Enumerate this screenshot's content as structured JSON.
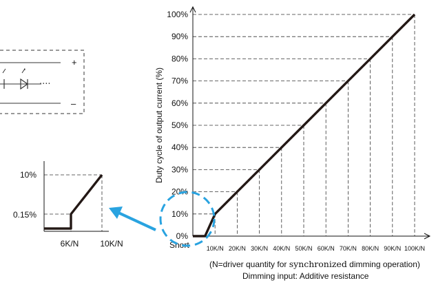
{
  "chart_data": [
    {
      "type": "line",
      "title": "",
      "ylabel": "Duty cycle of output current (%)",
      "xlabel": "Dimming input: Additive resistance",
      "note_prefix": "(N=driver quantity for ",
      "note_word": "synchronized",
      "note_suffix": " dimming operation)",
      "x_origin_label": "Short",
      "y_ticks": [
        "0%",
        "10%",
        "20%",
        "30%",
        "40%",
        "50%",
        "60%",
        "70%",
        "80%",
        "90%",
        "100%"
      ],
      "x_ticks": [
        "10K/N",
        "20K/N",
        "30K/N",
        "40K/N",
        "50K/N",
        "60K/N",
        "70K/N",
        "80K/N",
        "90K/N",
        "100K/N"
      ],
      "ylim": [
        0,
        100
      ],
      "grid": "dashed",
      "series": [
        {
          "x": [
            "Short",
            "6K/N",
            "10K/N",
            "20K/N",
            "30K/N",
            "40K/N",
            "50K/N",
            "60K/N",
            "70K/N",
            "80K/N",
            "90K/N",
            "100K/N"
          ],
          "values": [
            0,
            0,
            10,
            20,
            30,
            40,
            50,
            60,
            70,
            80,
            90,
            100
          ]
        }
      ]
    },
    {
      "type": "line",
      "title": "",
      "y_ticks": [
        "10%",
        "0.15%"
      ],
      "x_ticks": [
        "6K/N",
        "10K/N"
      ],
      "series": [
        {
          "x": [
            "Short",
            "6K/N",
            "6K/N",
            "10K/N"
          ],
          "values": [
            0,
            0,
            0.15,
            10
          ]
        }
      ]
    }
  ],
  "circuit": {
    "plus_label": "+",
    "minus_label": "–",
    "dots": "····"
  },
  "colors": {
    "curve": "#231815",
    "arrow": "#29a3e0",
    "highlight_circle": "#29a3e0",
    "grid": "#333333"
  }
}
